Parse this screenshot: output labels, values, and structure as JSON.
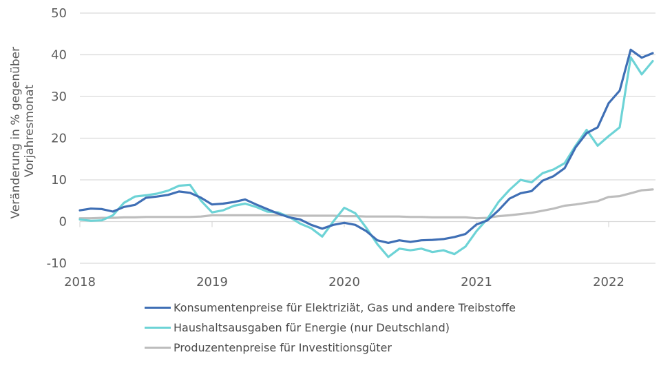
{
  "chart_data": {
    "type": "line",
    "title": "",
    "xlabel": "",
    "ylabel": "Veränderung in % gegenüber Vorjahresmonat",
    "ylabel_lines": [
      "Veränderung in % gegenüber",
      "Vorjahresmonat"
    ],
    "ylim": [
      -10,
      50
    ],
    "yticks": [
      -10,
      0,
      10,
      20,
      30,
      40,
      50
    ],
    "xtick_labels": [
      "2018",
      "2019",
      "2020",
      "2021",
      "2022"
    ],
    "x_start": "2018-01",
    "x_end": "2022-05",
    "x_frequency": "monthly",
    "grid": "horizontal",
    "legend_position": "bottom",
    "series": [
      {
        "name": "Konsumentenpreise für Elektriziät, Gas und andere Treibstoffe",
        "color": "#3f6fb5",
        "values": [
          2.7,
          3.1,
          3.0,
          2.4,
          3.5,
          4.0,
          5.7,
          6.0,
          6.4,
          7.2,
          6.9,
          5.7,
          4.1,
          4.3,
          4.7,
          5.3,
          4.1,
          3.0,
          1.9,
          1.0,
          0.5,
          -0.8,
          -1.7,
          -0.8,
          -0.3,
          -0.8,
          -2.3,
          -4.5,
          -5.1,
          -4.5,
          -4.9,
          -4.5,
          -4.4,
          -4.2,
          -3.7,
          -3.0,
          -0.7,
          0.3,
          2.7,
          5.5,
          6.8,
          7.3,
          9.8,
          10.9,
          12.8,
          17.8,
          21.2,
          22.6,
          28.4,
          31.4,
          41.2,
          39.3,
          40.4
        ]
      },
      {
        "name": "Haushaltsausgaben für Energie (nur Deutschland)",
        "color": "#6dd3d6",
        "values": [
          0.5,
          0.2,
          0.3,
          1.5,
          4.5,
          6.0,
          6.3,
          6.7,
          7.4,
          8.6,
          8.8,
          5.0,
          2.2,
          2.7,
          3.8,
          4.3,
          3.5,
          2.4,
          2.2,
          1.1,
          -0.5,
          -1.6,
          -3.6,
          0.0,
          3.3,
          2.0,
          -1.5,
          -5.4,
          -8.5,
          -6.5,
          -6.9,
          -6.5,
          -7.3,
          -6.9,
          -7.8,
          -6.0,
          -2.3,
          0.7,
          4.7,
          7.6,
          10.0,
          9.4,
          11.6,
          12.5,
          14.0,
          18.2,
          22.0,
          18.2,
          20.5,
          22.6,
          39.4,
          35.3,
          38.5
        ]
      },
      {
        "name": "Produzentenpreise für Investitionsgüter",
        "color": "#bdbdbd",
        "values": [
          0.8,
          0.8,
          0.9,
          0.9,
          1.0,
          1.0,
          1.1,
          1.1,
          1.1,
          1.1,
          1.1,
          1.2,
          1.5,
          1.5,
          1.5,
          1.5,
          1.5,
          1.5,
          1.5,
          1.5,
          1.4,
          1.4,
          1.4,
          1.4,
          1.3,
          1.3,
          1.2,
          1.2,
          1.2,
          1.2,
          1.1,
          1.1,
          1.0,
          1.0,
          1.0,
          1.0,
          0.8,
          0.9,
          1.3,
          1.5,
          1.8,
          2.1,
          2.6,
          3.1,
          3.8,
          4.1,
          4.5,
          4.9,
          5.9,
          6.1,
          6.8,
          7.5,
          7.7
        ]
      }
    ]
  }
}
